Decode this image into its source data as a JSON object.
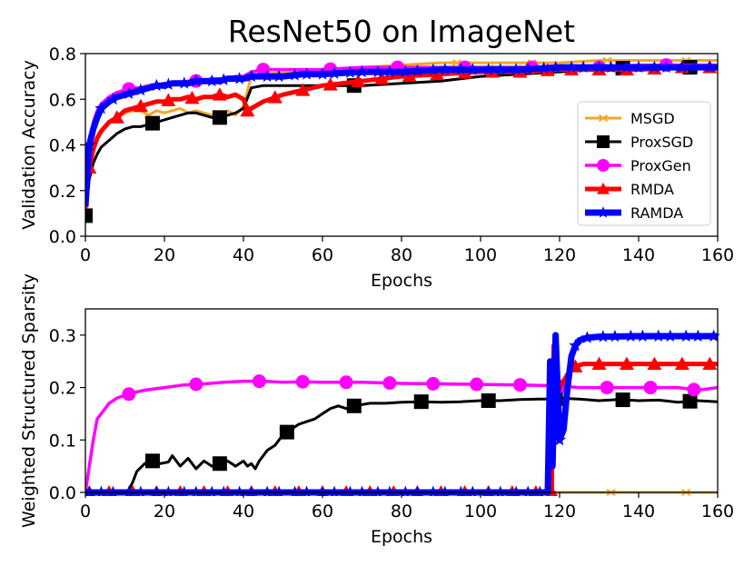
{
  "figure_title": "ResNet50 on ImageNet",
  "colors": {
    "MSGD": "#f5a623",
    "ProxSGD": "#000000",
    "ProxGen": "#ff00ff",
    "RMDA": "#ff0000",
    "RAMDA": "#0000ff"
  },
  "chart_data": [
    {
      "type": "line",
      "title": "ResNet50 on ImageNet",
      "xlabel": "Epochs",
      "ylabel": "Validation Accuracy",
      "xlim": [
        0,
        160
      ],
      "ylim": [
        0.0,
        0.8
      ],
      "xticks": [
        "0",
        "20",
        "40",
        "60",
        "80",
        "100",
        "120",
        "140",
        "160"
      ],
      "yticks": [
        "0.0",
        "0.2",
        "0.4",
        "0.6",
        "0.8"
      ],
      "legend_position": "center-right",
      "legend": [
        "MSGD",
        "ProxSGD",
        "ProxGen",
        "RMDA",
        "RAMDA"
      ],
      "series": [
        {
          "name": "MSGD",
          "marker": "x",
          "x": [
            0,
            1,
            2,
            3,
            4,
            6,
            8,
            10,
            12,
            14,
            16,
            18,
            20,
            22,
            24,
            26,
            28,
            30,
            32,
            34,
            36,
            38,
            40,
            42,
            45,
            50,
            55,
            60,
            70,
            80,
            90,
            100,
            110,
            120,
            130,
            140,
            150,
            160
          ],
          "y": [
            0.1,
            0.3,
            0.38,
            0.42,
            0.46,
            0.5,
            0.52,
            0.54,
            0.55,
            0.55,
            0.53,
            0.55,
            0.54,
            0.55,
            0.56,
            0.54,
            0.55,
            0.54,
            0.53,
            0.52,
            0.55,
            0.53,
            0.57,
            0.7,
            0.71,
            0.72,
            0.73,
            0.73,
            0.74,
            0.75,
            0.76,
            0.76,
            0.76,
            0.76,
            0.77,
            0.77,
            0.77,
            0.77
          ],
          "marker_x": [
            0,
            16,
            34,
            94,
            113,
            132,
            152
          ]
        },
        {
          "name": "ProxSGD",
          "marker": "square",
          "x": [
            0,
            1,
            2,
            3,
            4,
            6,
            8,
            10,
            12,
            14,
            16,
            18,
            20,
            22,
            24,
            26,
            28,
            30,
            32,
            34,
            36,
            38,
            40,
            42,
            45,
            50,
            55,
            60,
            70,
            80,
            90,
            100,
            110,
            120,
            130,
            140,
            150,
            160
          ],
          "y": [
            0.09,
            0.25,
            0.32,
            0.36,
            0.39,
            0.42,
            0.45,
            0.47,
            0.48,
            0.48,
            0.49,
            0.5,
            0.51,
            0.52,
            0.53,
            0.54,
            0.54,
            0.53,
            0.52,
            0.52,
            0.53,
            0.54,
            0.56,
            0.65,
            0.66,
            0.66,
            0.66,
            0.66,
            0.66,
            0.67,
            0.68,
            0.7,
            0.71,
            0.72,
            0.73,
            0.74,
            0.74,
            0.74
          ],
          "marker_x": [
            0,
            17,
            34,
            68,
            136,
            153
          ]
        },
        {
          "name": "ProxGen",
          "marker": "circle",
          "x": [
            0,
            1,
            2,
            3,
            4,
            6,
            8,
            10,
            12,
            14,
            16,
            18,
            20,
            22,
            24,
            26,
            28,
            30,
            32,
            34,
            36,
            38,
            40,
            42,
            45,
            50,
            55,
            60,
            70,
            80,
            90,
            100,
            110,
            120,
            130,
            140,
            150,
            160
          ],
          "y": [
            0.15,
            0.4,
            0.5,
            0.55,
            0.58,
            0.61,
            0.63,
            0.64,
            0.65,
            0.65,
            0.66,
            0.66,
            0.67,
            0.67,
            0.67,
            0.68,
            0.68,
            0.68,
            0.69,
            0.69,
            0.69,
            0.7,
            0.7,
            0.72,
            0.73,
            0.73,
            0.73,
            0.73,
            0.74,
            0.74,
            0.74,
            0.74,
            0.74,
            0.74,
            0.74,
            0.75,
            0.75,
            0.75
          ],
          "marker_x": [
            11,
            28,
            45,
            62,
            79,
            96,
            113,
            130,
            147
          ]
        },
        {
          "name": "RMDA",
          "marker": "triangle",
          "x": [
            0,
            1,
            2,
            3,
            4,
            6,
            8,
            10,
            12,
            14,
            16,
            18,
            20,
            22,
            24,
            26,
            28,
            30,
            32,
            34,
            36,
            38,
            40,
            41,
            43,
            45,
            50,
            55,
            60,
            70,
            80,
            90,
            100,
            110,
            120,
            130,
            140,
            150,
            160
          ],
          "y": [
            0.12,
            0.3,
            0.38,
            0.43,
            0.46,
            0.5,
            0.52,
            0.55,
            0.56,
            0.57,
            0.58,
            0.59,
            0.59,
            0.6,
            0.6,
            0.61,
            0.6,
            0.61,
            0.61,
            0.62,
            0.61,
            0.62,
            0.6,
            0.55,
            0.57,
            0.59,
            0.62,
            0.64,
            0.66,
            0.68,
            0.7,
            0.71,
            0.72,
            0.72,
            0.73,
            0.73,
            0.73,
            0.74,
            0.74
          ],
          "marker_x": [
            1,
            8,
            14,
            21,
            27,
            34,
            41,
            48,
            55,
            62,
            69,
            75,
            82,
            89,
            96,
            103,
            110,
            117,
            123,
            130,
            137,
            144,
            151,
            158
          ]
        },
        {
          "name": "RAMDA",
          "marker": "star",
          "x": [
            0,
            1,
            2,
            3,
            4,
            6,
            8,
            10,
            12,
            14,
            16,
            18,
            20,
            22,
            24,
            26,
            28,
            30,
            32,
            34,
            36,
            38,
            40,
            42,
            45,
            50,
            55,
            60,
            70,
            80,
            90,
            100,
            110,
            120,
            130,
            140,
            150,
            160
          ],
          "y": [
            0.13,
            0.4,
            0.47,
            0.52,
            0.56,
            0.59,
            0.61,
            0.62,
            0.63,
            0.64,
            0.65,
            0.66,
            0.66,
            0.67,
            0.67,
            0.67,
            0.68,
            0.68,
            0.68,
            0.68,
            0.69,
            0.69,
            0.69,
            0.7,
            0.7,
            0.7,
            0.71,
            0.71,
            0.72,
            0.72,
            0.73,
            0.73,
            0.73,
            0.74,
            0.74,
            0.74,
            0.74,
            0.74
          ],
          "marker_x": [
            1,
            4,
            7,
            11,
            14,
            18,
            21,
            25,
            28,
            32,
            35,
            39,
            42,
            46,
            49,
            53,
            56,
            60,
            63,
            67,
            70,
            74,
            77,
            81,
            84,
            88,
            91,
            95,
            98,
            102,
            105,
            109,
            112,
            116,
            119,
            123,
            126,
            130,
            133,
            137,
            140,
            144,
            147,
            151,
            154,
            158
          ]
        }
      ]
    },
    {
      "type": "line",
      "title": "",
      "xlabel": "Epochs",
      "ylabel": "Weighted Structured Sparsity",
      "xlim": [
        0,
        160
      ],
      "ylim": [
        0.0,
        0.35
      ],
      "xticks": [
        "0",
        "20",
        "40",
        "60",
        "80",
        "100",
        "120",
        "140",
        "160"
      ],
      "yticks": [
        "0.0",
        "0.1",
        "0.2",
        "0.3"
      ],
      "series": [
        {
          "name": "MSGD",
          "marker": "x",
          "x": [
            0,
            160
          ],
          "y": [
            0.0,
            0.0
          ],
          "marker_x": [
            133,
            152
          ]
        },
        {
          "name": "ProxSGD",
          "marker": "square",
          "x": [
            0,
            10,
            11,
            12,
            13,
            15,
            17,
            19,
            21,
            22,
            24,
            26,
            28,
            30,
            32,
            34,
            36,
            38,
            40,
            41,
            42,
            43,
            44,
            45,
            46,
            48,
            50,
            52,
            54,
            56,
            58,
            60,
            62,
            64,
            66,
            68,
            72,
            76,
            80,
            85,
            90,
            95,
            100,
            105,
            110,
            115,
            118,
            120,
            125,
            130,
            135,
            140,
            145,
            150,
            155,
            160
          ],
          "y": [
            0.0,
            0.0,
            0.005,
            0.02,
            0.04,
            0.055,
            0.06,
            0.055,
            0.058,
            0.07,
            0.05,
            0.065,
            0.045,
            0.06,
            0.05,
            0.055,
            0.06,
            0.05,
            0.06,
            0.05,
            0.055,
            0.045,
            0.06,
            0.07,
            0.08,
            0.09,
            0.11,
            0.12,
            0.13,
            0.135,
            0.14,
            0.15,
            0.16,
            0.165,
            0.16,
            0.165,
            0.17,
            0.17,
            0.172,
            0.173,
            0.172,
            0.173,
            0.175,
            0.175,
            0.177,
            0.178,
            0.178,
            0.18,
            0.178,
            0.175,
            0.177,
            0.175,
            0.176,
            0.172,
            0.175,
            0.173
          ],
          "marker_x": [
            17,
            34,
            51,
            68,
            85,
            102,
            119,
            136,
            153
          ]
        },
        {
          "name": "ProxGen",
          "marker": "circle",
          "x": [
            0,
            1,
            2,
            3,
            4,
            5,
            6,
            7,
            8,
            10,
            12,
            15,
            20,
            25,
            30,
            35,
            40,
            45,
            50,
            55,
            60,
            70,
            80,
            90,
            100,
            110,
            115,
            120,
            125,
            130,
            140,
            150,
            155,
            160
          ],
          "y": [
            0.0,
            0.05,
            0.1,
            0.14,
            0.15,
            0.16,
            0.17,
            0.175,
            0.18,
            0.185,
            0.19,
            0.195,
            0.2,
            0.205,
            0.207,
            0.21,
            0.212,
            0.212,
            0.21,
            0.211,
            0.21,
            0.21,
            0.208,
            0.207,
            0.206,
            0.205,
            0.204,
            0.203,
            0.2,
            0.2,
            0.2,
            0.2,
            0.195,
            0.2
          ],
          "marker_x": [
            11,
            28,
            44,
            55,
            66,
            77,
            88,
            99,
            110,
            121,
            132,
            143,
            154
          ]
        },
        {
          "name": "RMDA",
          "marker": "triangle",
          "x": [
            0,
            118,
            118.5,
            119,
            120,
            122,
            124,
            126,
            130,
            140,
            150,
            160
          ],
          "y": [
            0.0,
            0.0,
            0.28,
            0.25,
            0.2,
            0.225,
            0.24,
            0.245,
            0.245,
            0.245,
            0.245,
            0.245
          ],
          "marker_x": [
            1,
            6,
            12,
            18,
            24,
            30,
            36,
            42,
            48,
            54,
            60,
            66,
            72,
            78,
            84,
            90,
            96,
            102,
            108,
            114,
            118,
            124,
            130,
            137,
            144,
            151,
            158
          ]
        },
        {
          "name": "RAMDA",
          "marker": "star",
          "x": [
            0,
            117,
            117.6,
            118.2,
            119,
            120,
            121,
            122,
            123,
            124,
            125,
            127,
            130,
            140,
            150,
            160
          ],
          "y": [
            0.0,
            0.0,
            0.25,
            0.05,
            0.3,
            0.1,
            0.12,
            0.2,
            0.26,
            0.28,
            0.29,
            0.295,
            0.297,
            0.298,
            0.298,
            0.298
          ],
          "marker_x": [
            1,
            4,
            7,
            11,
            14,
            18,
            21,
            25,
            28,
            32,
            35,
            39,
            42,
            46,
            49,
            53,
            56,
            60,
            63,
            67,
            70,
            74,
            77,
            81,
            84,
            88,
            91,
            95,
            98,
            102,
            105,
            109,
            112,
            115,
            120,
            124,
            127,
            131,
            134,
            138,
            141,
            145,
            148,
            152,
            155,
            159
          ]
        }
      ]
    }
  ]
}
